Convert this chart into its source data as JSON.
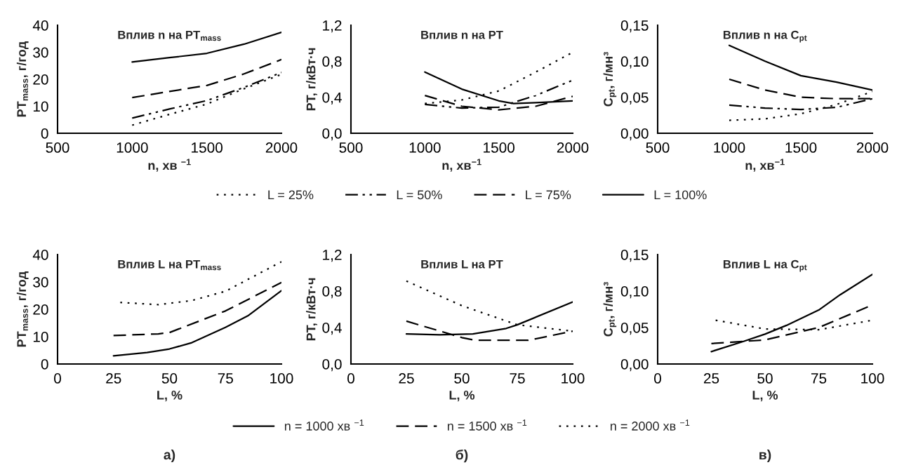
{
  "chart_data": [
    {
      "type": "line",
      "title": "Вплив n на PT$_{mass}$",
      "xlabel": "n, хв $^{−1}$",
      "ylabel": "PT$_{mass}$, г/год",
      "xlim": [
        500,
        2000
      ],
      "xticks": [
        500,
        1000,
        1500,
        2000
      ],
      "ylim": [
        0,
        40
      ],
      "yticks": [
        0,
        10,
        20,
        30,
        40
      ],
      "series": [
        {
          "color": "#000000",
          "line_style": "dotted",
          "x": [
            1000,
            1250,
            1500,
            1750,
            2000
          ],
          "values": [
            3,
            7,
            10.8,
            16.5,
            21.8
          ]
        },
        {
          "color": "#000000",
          "line_style": "dashdot",
          "x": [
            1000,
            1250,
            1500,
            1750,
            2000
          ],
          "values": [
            5.6,
            9,
            12.1,
            17,
            22.5
          ]
        },
        {
          "color": "#000000",
          "line_style": "dashed",
          "x": [
            1000,
            1250,
            1500,
            1750,
            2000
          ],
          "values": [
            13.2,
            15.5,
            17.7,
            22,
            27.3
          ]
        },
        {
          "color": "#000000",
          "line_style": "solid",
          "x": [
            1000,
            1250,
            1500,
            1750,
            2000
          ],
          "values": [
            26.4,
            28,
            29.6,
            33,
            37.4
          ]
        }
      ]
    },
    {
      "type": "line",
      "title": "Вплив n на PT",
      "xlabel": "n, хв$^{−1}$",
      "ylabel": "PT, г/кВт·ч",
      "xlim": [
        500,
        2000
      ],
      "xticks": [
        500,
        1000,
        1500,
        2000
      ],
      "ylim": [
        0,
        1.2
      ],
      "yticks": [
        {
          "value": 0,
          "label": "0,0"
        },
        {
          "value": 0.4,
          "label": "0,4"
        },
        {
          "value": 0.8,
          "label": "0,8"
        },
        {
          "value": 1.2,
          "label": "1,2"
        }
      ],
      "legend": "bottom",
      "series": [
        {
          "name": "L = 25%",
          "color": "#000000",
          "line_style": "dotted",
          "x": [
            1000,
            1250,
            1500,
            1750,
            2000
          ],
          "values": [
            0.33,
            0.37,
            0.47,
            0.68,
            0.9
          ]
        },
        {
          "name": "L = 50%",
          "color": "#000000",
          "line_style": "dashdot",
          "x": [
            1000,
            1250,
            1500,
            1750,
            2000
          ],
          "values": [
            0.32,
            0.28,
            0.29,
            0.42,
            0.59
          ]
        },
        {
          "name": "L = 75%",
          "color": "#000000",
          "line_style": "dashed",
          "x": [
            1000,
            1250,
            1500,
            1750,
            2000
          ],
          "values": [
            0.42,
            0.3,
            0.26,
            0.3,
            0.41
          ]
        },
        {
          "name": "L = 100%",
          "color": "#000000",
          "line_style": "solid",
          "x": [
            1000,
            1250,
            1500,
            1600,
            1750,
            2000
          ],
          "values": [
            0.68,
            0.49,
            0.36,
            0.33,
            0.34,
            0.36
          ]
        }
      ]
    },
    {
      "type": "line",
      "title": "Вплив n на C$_{pt}$",
      "xlabel": "n, хв$^{−1}$",
      "ylabel": "C$_{pt}$, г/мн³",
      "xlim": [
        500,
        2000
      ],
      "xticks": [
        500,
        1000,
        1500,
        2000
      ],
      "ylim": [
        0,
        0.15
      ],
      "yticks": [
        {
          "value": 0,
          "label": "0,00"
        },
        {
          "value": 0.05,
          "label": "0,05"
        },
        {
          "value": 0.1,
          "label": "0,10"
        },
        {
          "value": 0.15,
          "label": "0,15"
        }
      ],
      "series": [
        {
          "color": "#000000",
          "line_style": "dotted",
          "x": [
            1000,
            1250,
            1500,
            1750,
            2000
          ],
          "values": [
            0.018,
            0.02,
            0.027,
            0.04,
            0.058
          ]
        },
        {
          "color": "#000000",
          "line_style": "dashdot",
          "x": [
            1000,
            1250,
            1500,
            1750,
            2000
          ],
          "values": [
            0.039,
            0.035,
            0.033,
            0.036,
            0.048
          ]
        },
        {
          "color": "#000000",
          "line_style": "dashed",
          "x": [
            1000,
            1250,
            1500,
            1750,
            2000
          ],
          "values": [
            0.075,
            0.06,
            0.05,
            0.048,
            0.048
          ]
        },
        {
          "color": "#000000",
          "line_style": "solid",
          "x": [
            1000,
            1250,
            1500,
            1750,
            2000
          ],
          "values": [
            0.122,
            0.1,
            0.08,
            0.071,
            0.06
          ]
        }
      ]
    },
    {
      "type": "line",
      "title": "Вплив L на PT$_{mass}$",
      "xlabel": "L, %",
      "ylabel": "PT$_{mass}$, г/год",
      "xlim": [
        0,
        100
      ],
      "xticks": [
        0,
        25,
        50,
        75,
        100
      ],
      "ylim": [
        0,
        40
      ],
      "yticks": [
        0,
        10,
        20,
        30,
        40
      ],
      "annotations": [
        "а)"
      ],
      "series": [
        {
          "color": "#000000",
          "line_style": "solid",
          "x": [
            25,
            40,
            50,
            60,
            75,
            85,
            100
          ],
          "values": [
            3,
            4.2,
            5.5,
            7.8,
            13.4,
            17.6,
            26.8
          ]
        },
        {
          "color": "#000000",
          "line_style": "dashed",
          "x": [
            25,
            45,
            50,
            75,
            100
          ],
          "values": [
            10.4,
            11,
            11.5,
            19.4,
            29.8
          ]
        },
        {
          "color": "#000000",
          "line_style": "dotted",
          "x": [
            28,
            45,
            60,
            75,
            100
          ],
          "values": [
            22.5,
            21.7,
            23.2,
            26.6,
            37.4
          ]
        }
      ]
    },
    {
      "type": "line",
      "title": "Вплив L на PT",
      "xlabel": "L, %",
      "ylabel": "PT, г/кВт·ч",
      "xlim": [
        0,
        100
      ],
      "xticks": [
        0,
        25,
        50,
        75,
        100
      ],
      "ylim": [
        0,
        1.2
      ],
      "yticks": [
        {
          "value": 0,
          "label": "0,0"
        },
        {
          "value": 0.4,
          "label": "0,4"
        },
        {
          "value": 0.8,
          "label": "0,8"
        },
        {
          "value": 1.2,
          "label": "1,2"
        }
      ],
      "legend": "bottom",
      "annotations": [
        "б)"
      ],
      "series": [
        {
          "name": "n = 1000 хв $^{−1}$",
          "color": "#000000",
          "line_style": "solid",
          "x": [
            25,
            40,
            55,
            70,
            75,
            100
          ],
          "values": [
            0.33,
            0.32,
            0.33,
            0.39,
            0.43,
            0.68
          ]
        },
        {
          "name": "n = 1500 хв $^{−1}$",
          "color": "#000000",
          "line_style": "dashed",
          "x": [
            25,
            50,
            56,
            80,
            100
          ],
          "values": [
            0.47,
            0.29,
            0.26,
            0.26,
            0.36
          ]
        },
        {
          "name": "n = 2000 хв $^{−1}$",
          "color": "#000000",
          "line_style": "dotted",
          "x": [
            25,
            50,
            75,
            100
          ],
          "values": [
            0.91,
            0.64,
            0.43,
            0.36
          ]
        }
      ]
    },
    {
      "type": "line",
      "title": "Вплив L на C$_{pt}$",
      "xlabel": "L, %",
      "ylabel": "C$_{pt}$, г/мн³",
      "xlim": [
        0,
        100
      ],
      "xticks": [
        0,
        25,
        50,
        75,
        100
      ],
      "ylim": [
        0,
        0.15
      ],
      "yticks": [
        {
          "value": 0,
          "label": "0,00"
        },
        {
          "value": 0.05,
          "label": "0,05"
        },
        {
          "value": 0.1,
          "label": "0,10"
        },
        {
          "value": 0.15,
          "label": "0,15"
        }
      ],
      "annotations": [
        "в)"
      ],
      "series": [
        {
          "color": "#000000",
          "line_style": "solid",
          "x": [
            25,
            40,
            50,
            60,
            75,
            85,
            100
          ],
          "values": [
            0.017,
            0.031,
            0.041,
            0.053,
            0.074,
            0.095,
            0.123
          ]
        },
        {
          "color": "#000000",
          "line_style": "dashed",
          "x": [
            25,
            50,
            75,
            100
          ],
          "values": [
            0.028,
            0.033,
            0.05,
            0.081
          ]
        },
        {
          "color": "#000000",
          "line_style": "dotted",
          "x": [
            27,
            50,
            75,
            100
          ],
          "values": [
            0.06,
            0.048,
            0.047,
            0.06
          ]
        }
      ]
    }
  ]
}
